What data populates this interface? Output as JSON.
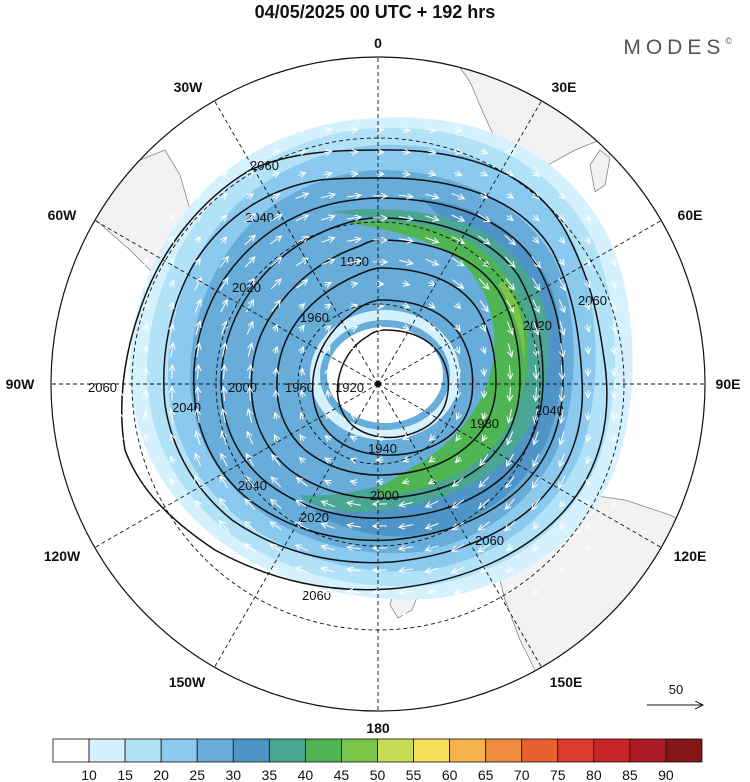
{
  "title": "04/05/2025  00 UTC  + 192 hrs",
  "brand": "MODES",
  "brand_mark": "©",
  "meridian_labels": {
    "m0": "0",
    "m30e": "30E",
    "m60e": "60E",
    "m90e": "90E",
    "m120e": "120E",
    "m150e": "150E",
    "m180": "180",
    "m150w": "150W",
    "m120w": "120W",
    "m90w": "90W",
    "m60w": "60W",
    "m30w": "30W"
  },
  "contour_labels": [
    "2060",
    "2040",
    "2020",
    "2000",
    "1980",
    "1960",
    "1940",
    "1920"
  ],
  "vector_reference": {
    "value": "50"
  },
  "colorbar": {
    "ticks": [
      "10",
      "15",
      "20",
      "25",
      "30",
      "35",
      "40",
      "45",
      "50",
      "55",
      "60",
      "65",
      "70",
      "75",
      "80",
      "85",
      "90"
    ],
    "colors": [
      "#ffffff",
      "#d4f1fd",
      "#b2e2f8",
      "#8bc9ee",
      "#68add9",
      "#4f94c7",
      "#4aa593",
      "#4eb552",
      "#7ac44a",
      "#c8dd56",
      "#f7e15c",
      "#f6b34c",
      "#f08b3d",
      "#e8602f",
      "#db3c2b",
      "#c8252b",
      "#ab1b25",
      "#861616"
    ]
  },
  "colors": {
    "land": "#f2f2f2",
    "coast": "#888888",
    "contour": "#111111",
    "vector": "#ffffff"
  }
}
